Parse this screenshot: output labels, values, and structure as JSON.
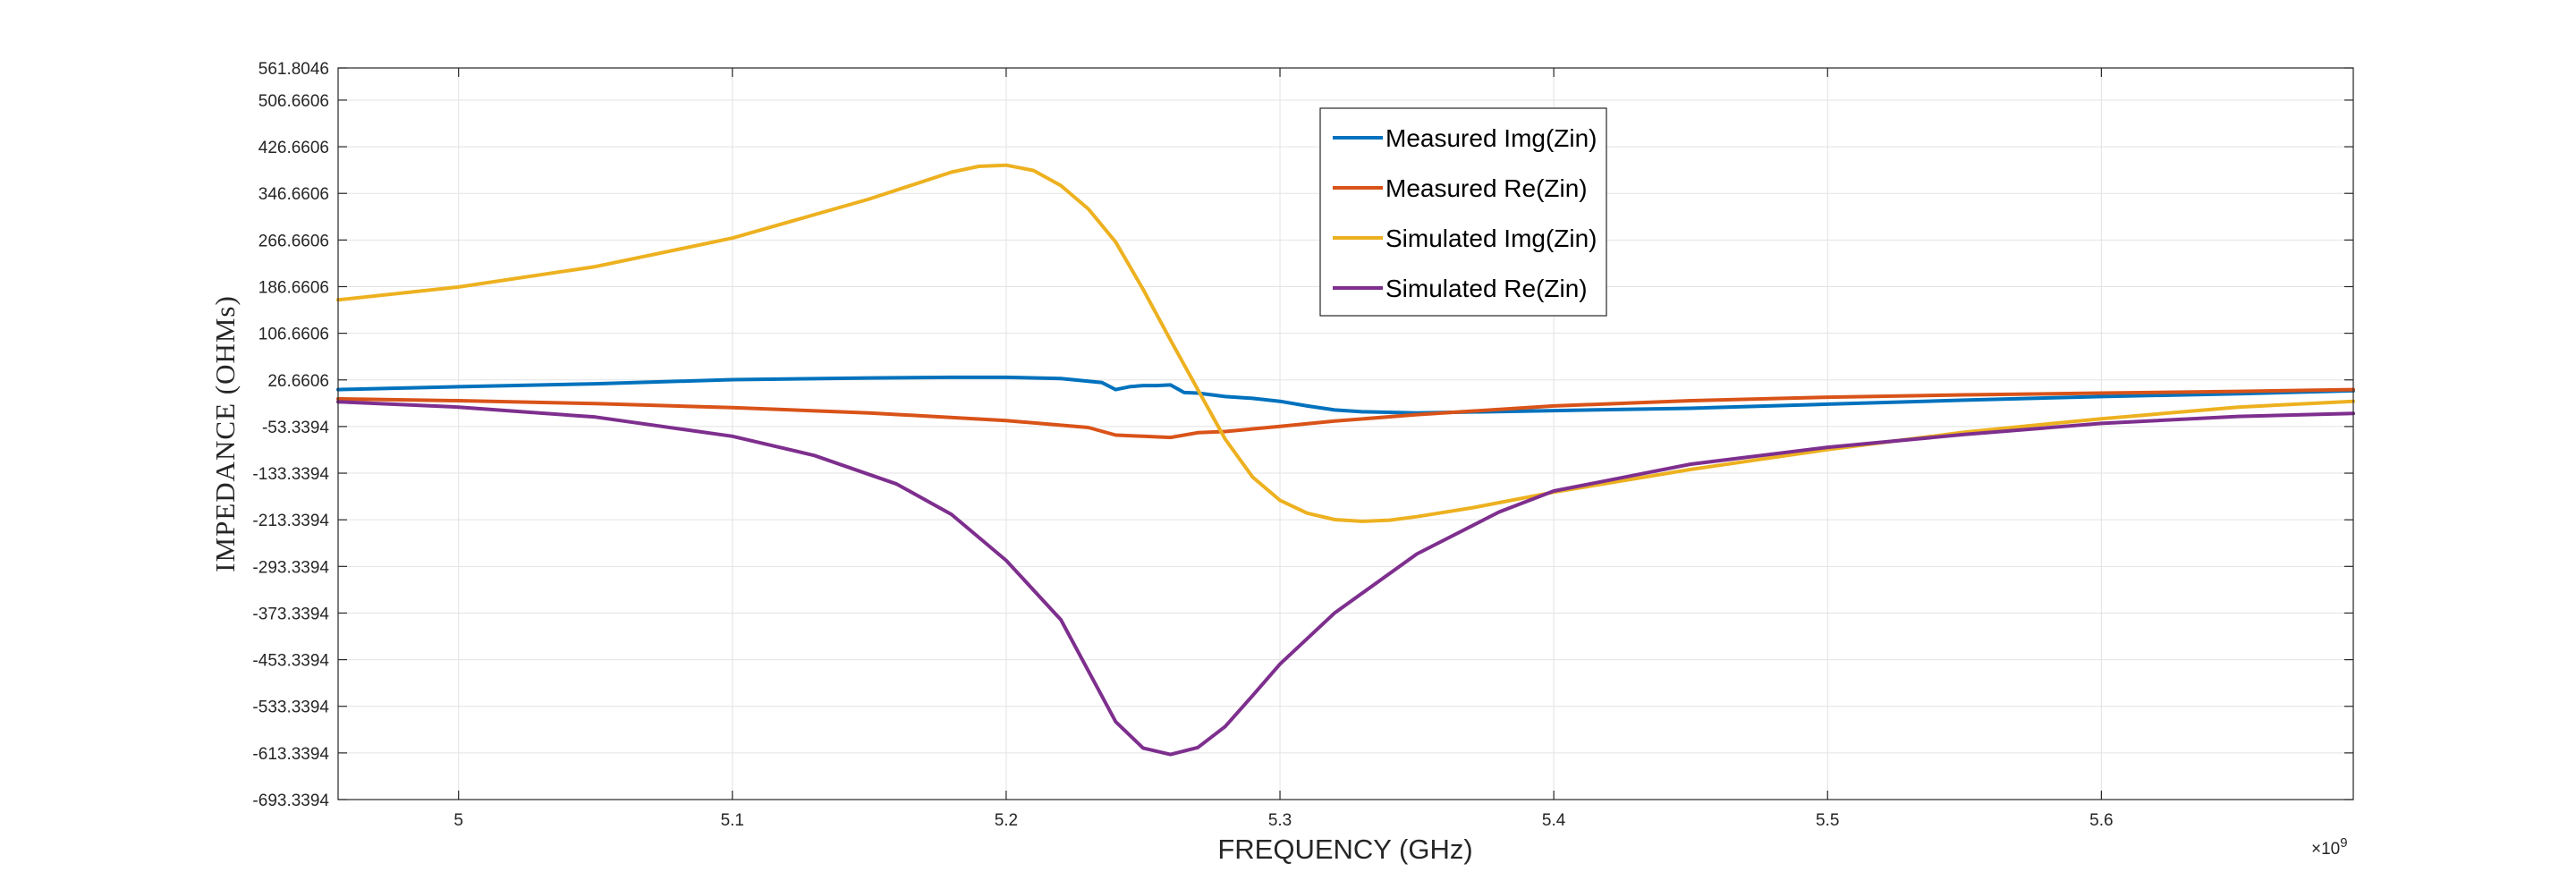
{
  "chart_data": {
    "type": "line",
    "title": "",
    "xlabel": "FREQUENCY (GHz)",
    "ylabel": "IMPEDANCE (OHMs)",
    "x_exponent": "×10",
    "x_exponent_power": "9",
    "xlim": [
      4956000000.0,
      5692000000.0
    ],
    "ylim": [
      -693.3394,
      561.8046
    ],
    "x_ticks": [
      5000000000.0,
      5100000000.0,
      5200000000.0,
      5300000000.0,
      5400000000.0,
      5500000000.0,
      5600000000.0
    ],
    "x_tick_labels": [
      "5",
      "5.1",
      "5.2",
      "5.3",
      "5.4",
      "5.5",
      "5.6"
    ],
    "y_ticks": [
      -693.3394,
      -613.3394,
      -533.3394,
      -453.3394,
      -373.3394,
      -293.3394,
      -213.3394,
      -133.3394,
      -53.3394,
      26.6606,
      106.6606,
      186.6606,
      266.6606,
      346.6606,
      426.6606,
      506.6606,
      561.8046
    ],
    "y_tick_labels": [
      "-693.3394",
      "-613.3394",
      "-533.3394",
      "-453.3394",
      "-373.3394",
      "-293.3394",
      "-213.3394",
      "-133.3394",
      "-53.3394",
      "26.6606",
      "106.6606",
      "186.6606",
      "266.6606",
      "346.6606",
      "426.6606",
      "506.6606",
      "561.8046"
    ],
    "grid": true,
    "legend_position": "top-center",
    "series": [
      {
        "name": "Measured Img(Zin)",
        "color": "#0072BD",
        "x": [
          4956000000.0,
          5000000000.0,
          5050000000.0,
          5100000000.0,
          5150000000.0,
          5180000000.0,
          5200000000.0,
          5220000000.0,
          5235000000.0,
          5240000000.0,
          5245000000.0,
          5250000000.0,
          5255000000.0,
          5260000000.0,
          5265000000.0,
          5270000000.0,
          5280000000.0,
          5290000000.0,
          5300000000.0,
          5310000000.0,
          5320000000.0,
          5330000000.0,
          5350000000.0,
          5400000000.0,
          5450000000.0,
          5500000000.0,
          5550000000.0,
          5600000000.0,
          5650000000.0,
          5692000000.0
        ],
        "y": [
          10,
          15,
          20,
          27,
          30,
          31,
          31,
          29,
          22,
          10,
          15,
          17,
          17,
          18,
          5,
          4,
          -2,
          -5,
          -10,
          -18,
          -25,
          -28,
          -30,
          -26,
          -22,
          -15,
          -8,
          -2,
          3,
          8
        ]
      },
      {
        "name": "Measured Re(Zin)",
        "color": "#D95319",
        "x": [
          4956000000.0,
          5000000000.0,
          5050000000.0,
          5100000000.0,
          5150000000.0,
          5200000000.0,
          5230000000.0,
          5240000000.0,
          5250000000.0,
          5260000000.0,
          5270000000.0,
          5280000000.0,
          5300000000.0,
          5320000000.0,
          5350000000.0,
          5400000000.0,
          5450000000.0,
          5500000000.0,
          5550000000.0,
          5600000000.0,
          5650000000.0,
          5692000000.0
        ],
        "y": [
          -6,
          -9,
          -14,
          -21,
          -30,
          -43,
          -55,
          -68,
          -70,
          -72,
          -64,
          -62,
          -53,
          -44,
          -33,
          -18,
          -9,
          -3,
          1,
          4,
          7,
          10
        ]
      },
      {
        "name": "Simulated Img(Zin)",
        "color": "#EDB120",
        "x": [
          4956000000.0,
          5000000000.0,
          5050000000.0,
          5100000000.0,
          5150000000.0,
          5180000000.0,
          5190000000.0,
          5200000000.0,
          5210000000.0,
          5220000000.0,
          5230000000.0,
          5240000000.0,
          5250000000.0,
          5260000000.0,
          5270000000.0,
          5280000000.0,
          5290000000.0,
          5300000000.0,
          5310000000.0,
          5320000000.0,
          5330000000.0,
          5340000000.0,
          5350000000.0,
          5370000000.0,
          5400000000.0,
          5450000000.0,
          5500000000.0,
          5550000000.0,
          5600000000.0,
          5650000000.0,
          5692000000.0
        ],
        "y": [
          164,
          186,
          221,
          270,
          337,
          383,
          393,
          395,
          386,
          360,
          320,
          263,
          182,
          95,
          10,
          -75,
          -140,
          -180,
          -202,
          -213,
          -216,
          -214,
          -208,
          -193,
          -166,
          -127,
          -93,
          -63,
          -40,
          -20,
          -10
        ]
      },
      {
        "name": "Simulated Re(Zin)",
        "color": "#7E2F8E",
        "x": [
          4956000000.0,
          5000000000.0,
          5050000000.0,
          5100000000.0,
          5130000000.0,
          5160000000.0,
          5180000000.0,
          5200000000.0,
          5220000000.0,
          5240000000.0,
          5250000000.0,
          5260000000.0,
          5270000000.0,
          5280000000.0,
          5290000000.0,
          5300000000.0,
          5320000000.0,
          5350000000.0,
          5380000000.0,
          5400000000.0,
          5450000000.0,
          5500000000.0,
          5550000000.0,
          5600000000.0,
          5650000000.0,
          5692000000.0
        ],
        "y": [
          -11,
          -20,
          -37,
          -70,
          -103,
          -152,
          -204,
          -283,
          -385,
          -560,
          -605,
          -616,
          -604,
          -568,
          -515,
          -461,
          -373,
          -272,
          -200,
          -164,
          -118,
          -89,
          -67,
          -48,
          -36,
          -31
        ]
      }
    ]
  }
}
